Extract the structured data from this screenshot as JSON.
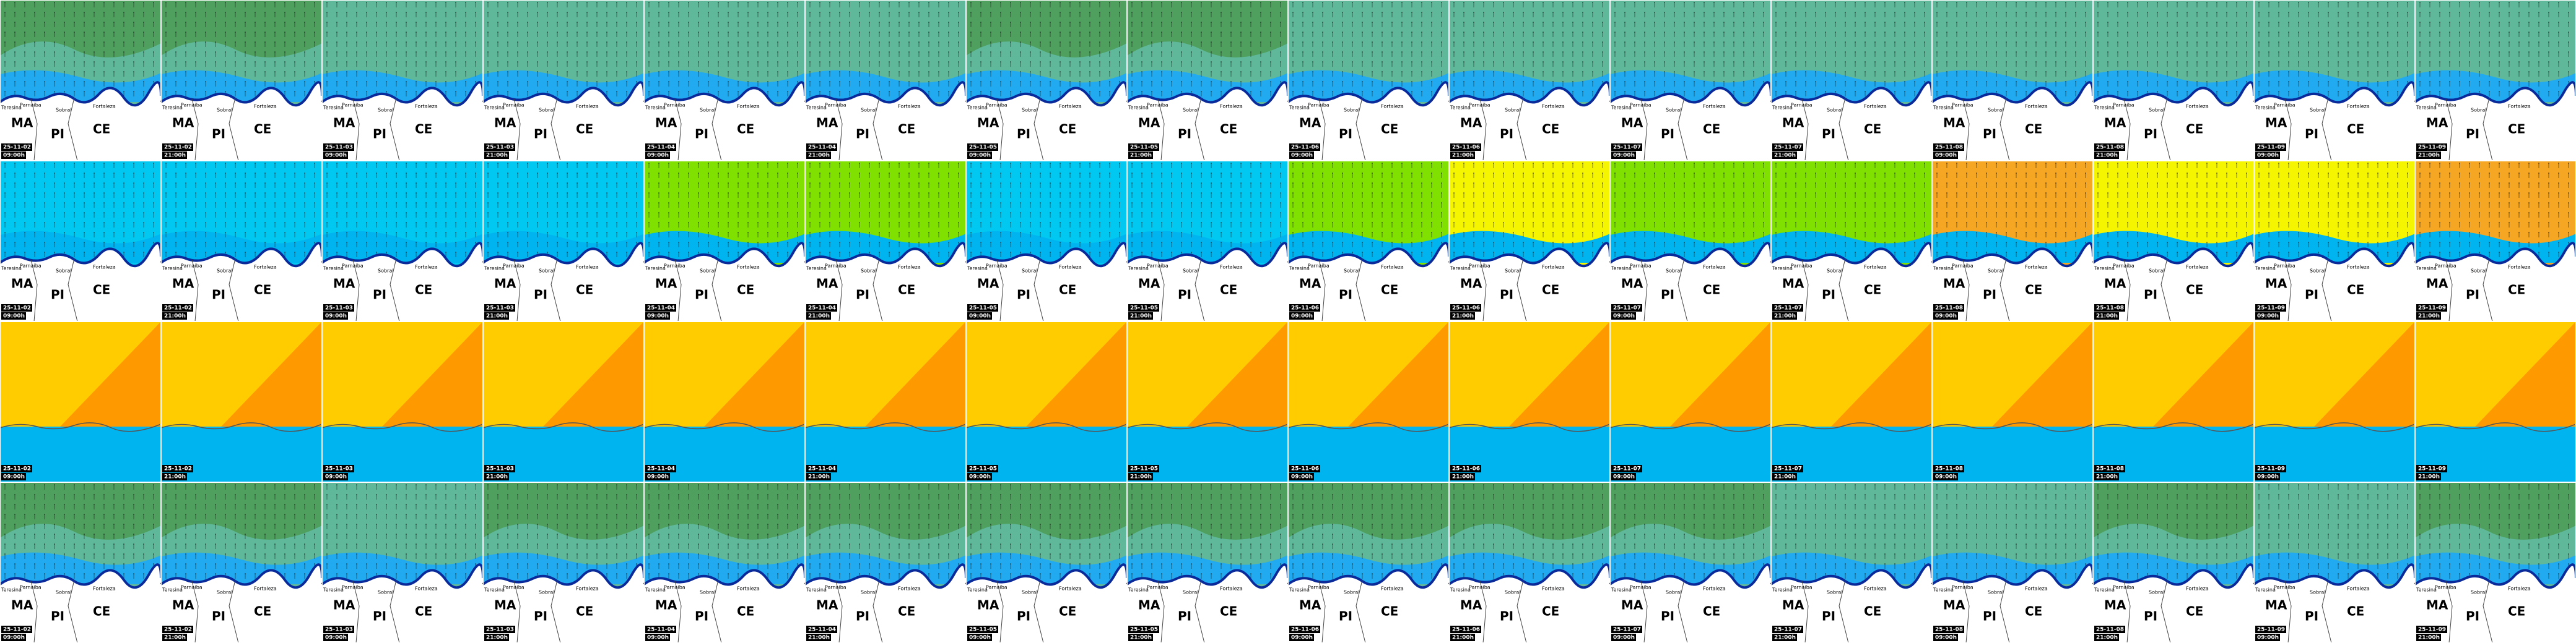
{
  "map_labels": {
    "states": [
      "MA",
      "PI",
      "CE"
    ],
    "cities": [
      "Teresina",
      "Parnaíba",
      "Sobral",
      "Fortaleza"
    ]
  },
  "columns": [
    {
      "date": "25-11-02",
      "time": "09:00h"
    },
    {
      "date": "25-11-02",
      "time": "21:00h"
    },
    {
      "date": "25-11-03",
      "time": "09:00h"
    },
    {
      "date": "25-11-03",
      "time": "21:00h"
    },
    {
      "date": "25-11-04",
      "time": "09:00h"
    },
    {
      "date": "25-11-04",
      "time": "21:00h"
    },
    {
      "date": "25-11-05",
      "time": "09:00h"
    },
    {
      "date": "25-11-05",
      "time": "21:00h"
    },
    {
      "date": "25-11-06",
      "time": "09:00h"
    },
    {
      "date": "25-11-06",
      "time": "21:00h"
    },
    {
      "date": "25-11-07",
      "time": "09:00h"
    },
    {
      "date": "25-11-07",
      "time": "21:00h"
    },
    {
      "date": "25-11-08",
      "time": "09:00h"
    },
    {
      "date": "25-11-08",
      "time": "21:00h"
    },
    {
      "date": "25-11-09",
      "time": "09:00h"
    },
    {
      "date": "25-11-09",
      "time": "21:00h"
    }
  ]
}
